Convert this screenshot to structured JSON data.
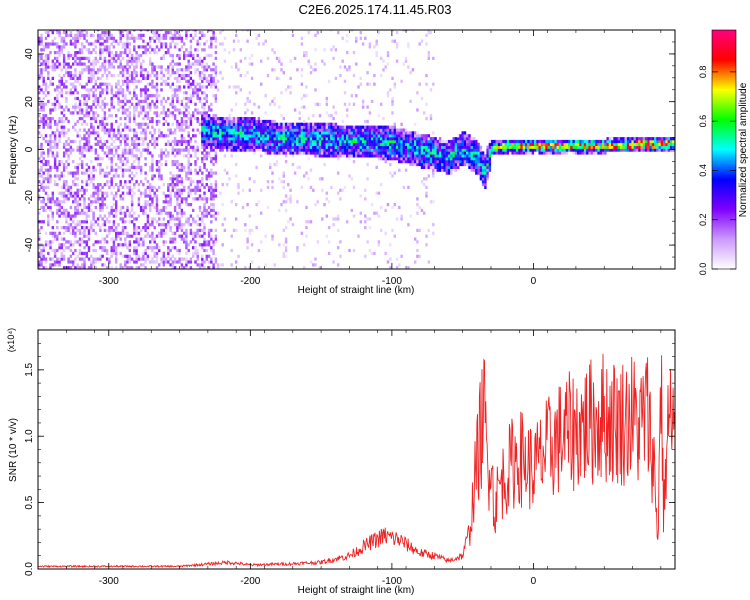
{
  "title": "C2E6.2025.174.11.45.R03",
  "chart_data": [
    {
      "type": "heatmap",
      "xlabel": "Height of straight line (km)",
      "ylabel": "Frequency (Hz)",
      "xlim": [
        -350,
        100
      ],
      "ylim": [
        -50,
        50
      ],
      "xticks": [
        -300,
        -200,
        -100,
        0
      ],
      "yticks": [
        -40,
        -20,
        0,
        20,
        40
      ],
      "colorbar": {
        "label": "Normalized spectral amplitude",
        "range": [
          0,
          0.97
        ],
        "ticks": [
          "0.0",
          "0.2",
          "0.4",
          "0.6",
          "0.8"
        ],
        "colors": [
          "#ffffff",
          "#cc99ff",
          "#7f00ff",
          "#0000ff",
          "#00ffff",
          "#00ff00",
          "#ffff00",
          "#ff0000",
          "#ff0080"
        ]
      },
      "ridge": {
        "x": [
          -240,
          -220,
          -200,
          -180,
          -160,
          -140,
          -120,
          -100,
          -80,
          -60,
          -50,
          -40,
          -35,
          -30,
          -20,
          0,
          50,
          95
        ],
        "y": [
          8,
          6,
          6,
          4,
          4,
          3,
          3,
          2,
          -1,
          -4,
          0,
          -4,
          -10,
          0,
          1,
          1,
          1,
          2
        ]
      }
    },
    {
      "type": "line",
      "xlabel": "Height of straight line (km)",
      "ylabel": "SNR (10 * v/v)",
      "y_multiplier": "(x10⁴)",
      "xlim": [
        -350,
        100
      ],
      "ylim": [
        0,
        1.8
      ],
      "xticks": [
        -300,
        -200,
        -100,
        0
      ],
      "yticks": [
        "0.0",
        "0.5",
        "1.0",
        "1.5"
      ],
      "color": "#ee2222",
      "x": [
        -350,
        -300,
        -250,
        -215,
        -200,
        -170,
        -150,
        -130,
        -115,
        -105,
        -95,
        -80,
        -70,
        -60,
        -50,
        -45,
        -40,
        -35,
        -32,
        -30,
        -28,
        -25,
        -20,
        -15,
        -10,
        -5,
        0,
        10,
        20,
        30,
        40,
        50,
        60,
        70,
        75,
        80,
        85,
        88,
        90,
        92,
        95
      ],
      "y": [
        0.02,
        0.02,
        0.02,
        0.05,
        0.03,
        0.04,
        0.05,
        0.1,
        0.2,
        0.25,
        0.22,
        0.12,
        0.1,
        0.06,
        0.1,
        0.3,
        0.8,
        1.2,
        0.7,
        1.0,
        0.4,
        0.6,
        0.7,
        0.8,
        0.85,
        0.8,
        0.75,
        0.9,
        1.0,
        1.05,
        1.1,
        1.15,
        1.1,
        1.15,
        1.05,
        1.2,
        0.8,
        0.2,
        1.55,
        0.4,
        1.1
      ]
    }
  ]
}
